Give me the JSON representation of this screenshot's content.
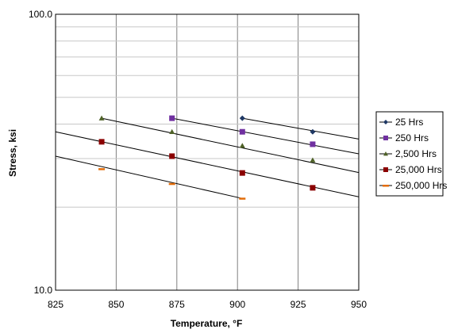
{
  "chart_data": {
    "type": "scatter",
    "title": "",
    "xlabel": "Temperature, °F",
    "ylabel": "Stress, ksi",
    "xlim": [
      825,
      950
    ],
    "ylim": [
      10,
      100
    ],
    "yscale": "log",
    "x_ticks": [
      "825",
      "850",
      "875",
      "900",
      "925",
      "950"
    ],
    "y_ticks": [
      "100.0",
      "10.0"
    ],
    "grid": true,
    "legend_position": "right",
    "series": [
      {
        "name": "25 Hrs",
        "marker": "diamond",
        "color": "#1f3864",
        "points": [
          [
            902,
            42.0
          ],
          [
            931,
            37.5
          ]
        ],
        "trend": {
          "x": [
            902,
            950
          ],
          "y": [
            42.0,
            35.3
          ]
        }
      },
      {
        "name": "250 Hrs",
        "marker": "square",
        "color": "#7030a0",
        "points": [
          [
            873,
            42.0
          ],
          [
            902,
            37.5
          ],
          [
            931,
            33.8
          ]
        ],
        "trend": {
          "x": [
            873,
            950
          ],
          "y": [
            42.0,
            31.2
          ]
        }
      },
      {
        "name": "2,500 Hrs",
        "marker": "triangle",
        "color": "#4f6228",
        "points": [
          [
            844,
            42.0
          ],
          [
            873,
            37.5
          ],
          [
            902,
            33.4
          ],
          [
            931,
            29.6
          ]
        ],
        "trend": {
          "x": [
            844,
            950
          ],
          "y": [
            42.0,
            26.7
          ]
        }
      },
      {
        "name": "25,000 Hrs",
        "marker": "square",
        "color": "#8b0000",
        "points": [
          [
            844,
            34.5
          ],
          [
            873,
            30.6
          ],
          [
            902,
            26.6
          ],
          [
            931,
            23.5
          ]
        ],
        "trend": {
          "x": [
            825,
            950
          ],
          "y": [
            37.5,
            21.8
          ]
        }
      },
      {
        "name": "250,000 Hrs",
        "marker": "dash",
        "color": "#e36c09",
        "points": [
          [
            844,
            27.5
          ],
          [
            873,
            24.3
          ],
          [
            902,
            21.5
          ]
        ],
        "trend": {
          "x": [
            825,
            902
          ],
          "y": [
            30.6,
            21.5
          ]
        }
      }
    ]
  }
}
